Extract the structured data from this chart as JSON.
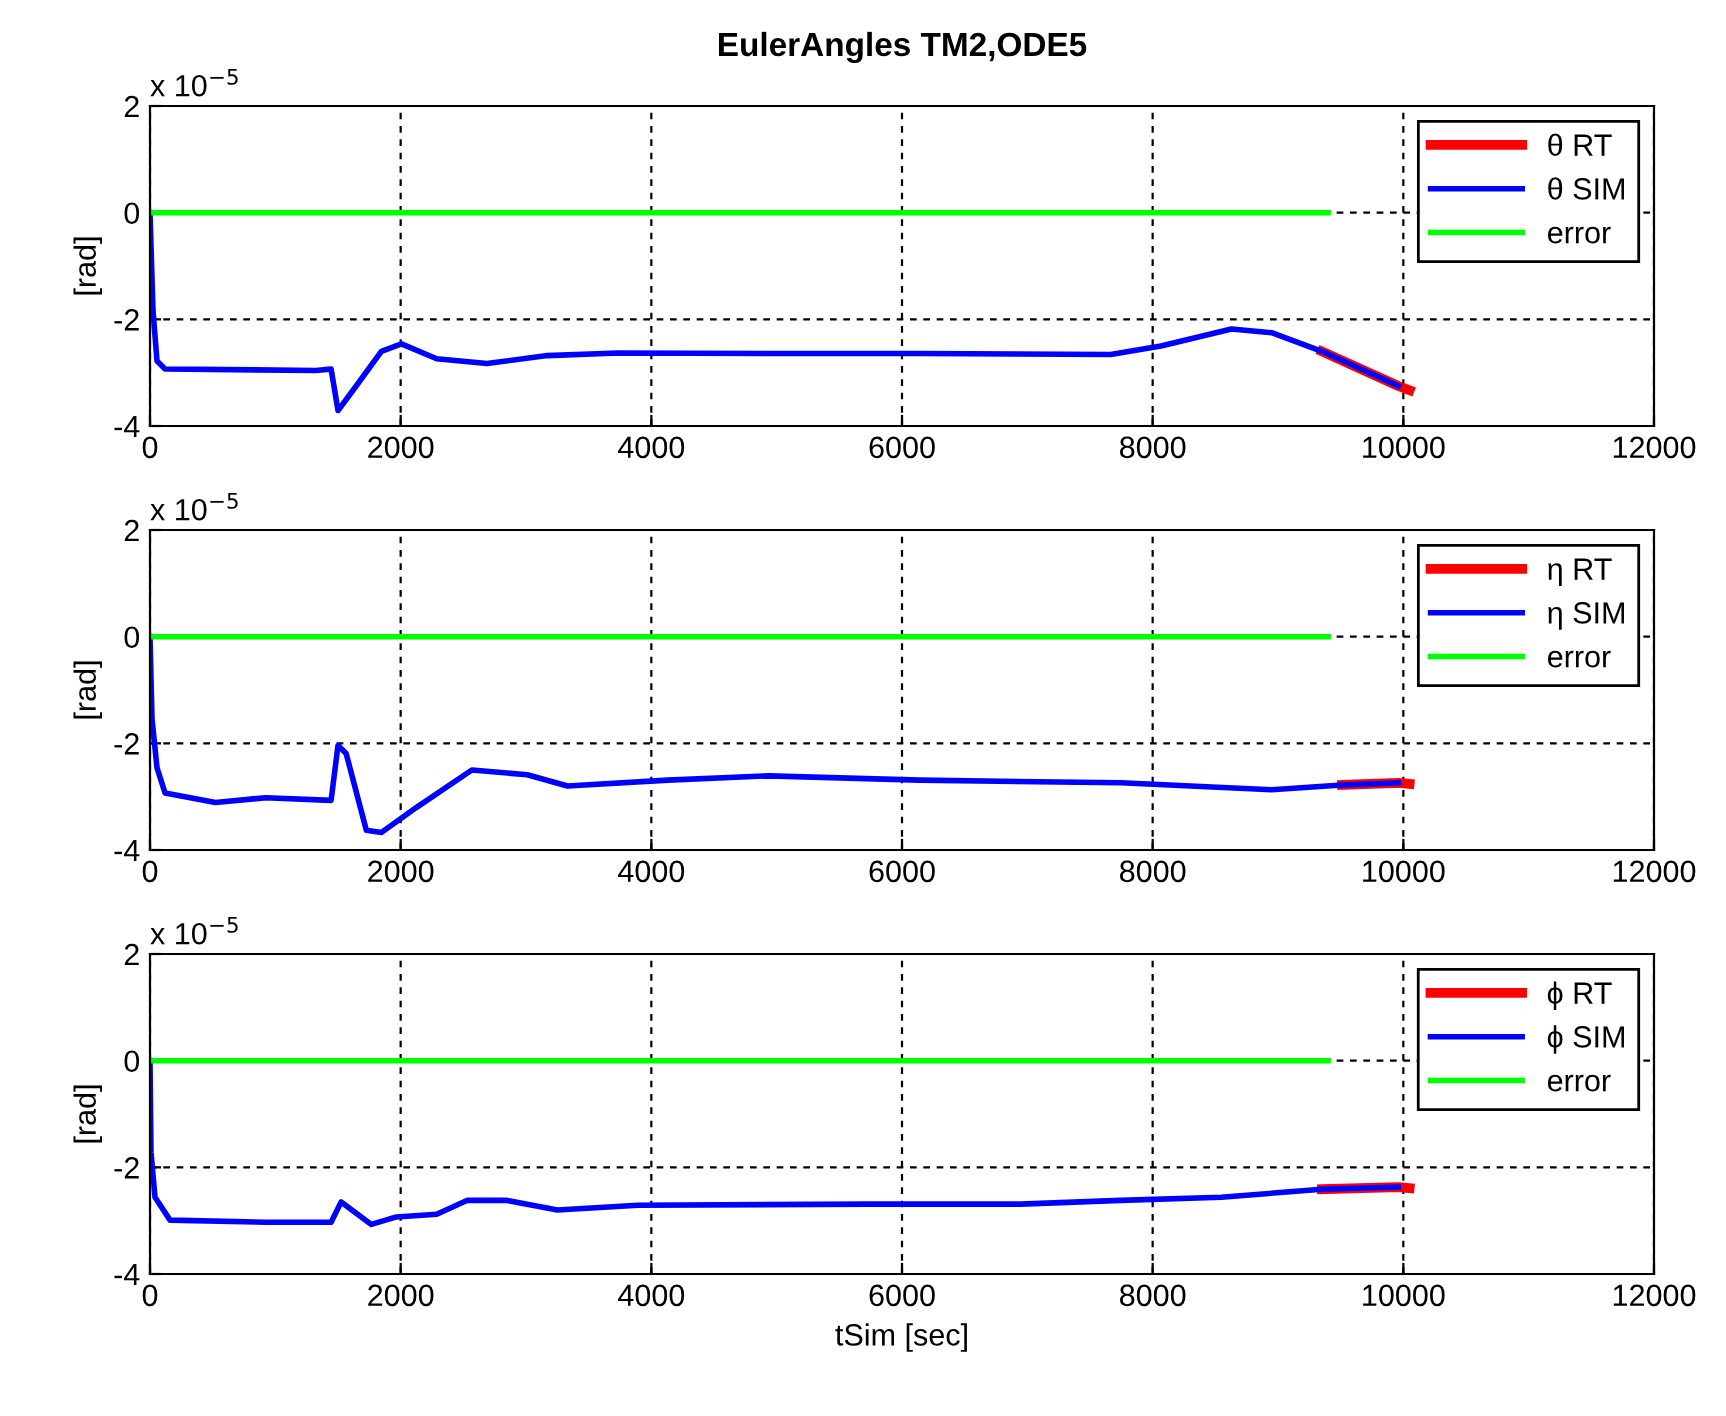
{
  "chart_data": [
    {
      "type": "line",
      "title": "EulerAngles TM2,ODE5",
      "ylabel": "[rad]",
      "annotations": [
        "x 10$^{−5}$"
      ],
      "xlim": [
        0,
        12000
      ],
      "xticks": [
        0,
        2000,
        4000,
        6000,
        8000,
        10000,
        12000
      ],
      "ylim": [
        -4,
        2
      ],
      "yticks": [
        -4,
        -2,
        0,
        2
      ],
      "grid": true,
      "legend": "top right",
      "line_style": "solid",
      "series": [
        {
          "name": "θ RT",
          "color": "#ff0000",
          "x": [
            9350,
            9960,
            10050
          ],
          "values": [
            -2.6,
            -3.25,
            -3.33
          ]
        },
        {
          "name": "θ SIM",
          "color": "#0000ff",
          "x": [
            0,
            24,
            56,
            120,
            1325,
            1445,
            1500,
            1645,
            1846,
            2006,
            2287,
            2688,
            3170,
            3732,
            4936,
            6140,
            7665,
            8066,
            8628,
            8949,
            9350,
            9960
          ],
          "values": [
            0,
            -1.84,
            -2.78,
            -2.93,
            -2.96,
            -2.93,
            -3.71,
            -3.25,
            -2.6,
            -2.46,
            -2.74,
            -2.83,
            -2.68,
            -2.63,
            -2.64,
            -2.64,
            -2.66,
            -2.5,
            -2.18,
            -2.25,
            -2.6,
            -3.25
          ]
        },
        {
          "name": "error",
          "color": "#00ff00",
          "x": [
            0,
            9400
          ],
          "values": [
            0,
            0
          ]
        }
      ]
    },
    {
      "type": "line",
      "ylabel": "[rad]",
      "annotations": [
        "x 10$^{−5}$"
      ],
      "xlim": [
        0,
        12000
      ],
      "xticks": [
        0,
        2000,
        4000,
        6000,
        8000,
        10000,
        12000
      ],
      "ylim": [
        -4,
        2
      ],
      "yticks": [
        -4,
        -2,
        0,
        2
      ],
      "grid": true,
      "legend": "top right",
      "line_style": "solid",
      "series": [
        {
          "name": "η RT",
          "color": "#ff0000",
          "x": [
            9510,
            9960,
            10050
          ],
          "values": [
            -2.78,
            -2.74,
            -2.76
          ]
        },
        {
          "name": "η SIM",
          "color": "#0000ff",
          "x": [
            0,
            16,
            56,
            120,
            522,
            923,
            1445,
            1500,
            1565,
            1726,
            1846,
            2127,
            2568,
            3010,
            3331,
            4133,
            4936,
            6140,
            7745,
            8949,
            9510,
            9960
          ],
          "values": [
            0,
            -1.54,
            -2.46,
            -2.93,
            -3.11,
            -3.02,
            -3.07,
            -2.04,
            -2.19,
            -3.63,
            -3.67,
            -3.2,
            -2.5,
            -2.59,
            -2.8,
            -2.69,
            -2.61,
            -2.69,
            -2.74,
            -2.87,
            -2.78,
            -2.74
          ]
        },
        {
          "name": "error",
          "color": "#00ff00",
          "x": [
            0,
            9400
          ],
          "values": [
            0,
            0
          ]
        }
      ]
    },
    {
      "type": "line",
      "xlabel": "tSim [sec]",
      "ylabel": "[rad]",
      "annotations": [
        "x 10$^{−5}$"
      ],
      "xlim": [
        0,
        12000
      ],
      "xticks": [
        0,
        2000,
        4000,
        6000,
        8000,
        10000,
        12000
      ],
      "ylim": [
        -4,
        2
      ],
      "yticks": [
        -4,
        -2,
        0,
        2
      ],
      "grid": true,
      "legend": "top right",
      "line_style": "solid",
      "series": [
        {
          "name": "ϕ RT",
          "color": "#ff0000",
          "x": [
            9350,
            9960,
            10050
          ],
          "values": [
            -2.41,
            -2.37,
            -2.39
          ]
        },
        {
          "name": "ϕ SIM",
          "color": "#0000ff",
          "x": [
            0,
            8,
            40,
            160,
            923,
            1445,
            1525,
            1766,
            1966,
            2287,
            2528,
            2849,
            3250,
            3892,
            5738,
            6942,
            7745,
            8547,
            9350,
            9960
          ],
          "values": [
            0,
            -1.72,
            -2.56,
            -2.99,
            -3.03,
            -3.03,
            -2.65,
            -3.07,
            -2.93,
            -2.88,
            -2.62,
            -2.62,
            -2.8,
            -2.71,
            -2.69,
            -2.69,
            -2.62,
            -2.56,
            -2.41,
            -2.37
          ]
        },
        {
          "name": "error",
          "color": "#00ff00",
          "x": [
            0,
            9400
          ],
          "values": [
            0,
            0
          ]
        }
      ]
    }
  ]
}
